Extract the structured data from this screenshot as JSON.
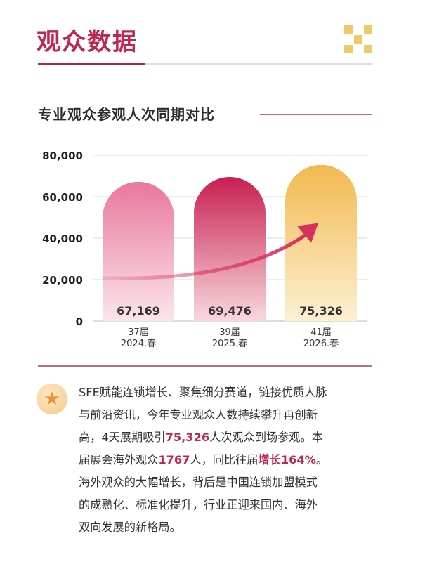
{
  "header": {
    "title": "观众数据"
  },
  "section": {
    "title": "专业观众参观人次同期对比"
  },
  "colors": {
    "accent": "#c0264f",
    "bar1_top": "#e9779d",
    "bar1_bottom": "#fbe6ea",
    "bar2_top": "#c81f52",
    "bar2_bottom": "#f9d9de",
    "bar3_top": "#f2b94f",
    "bar3_bottom": "#fdf0d3",
    "arrow": "#d6305c"
  },
  "chart_data": {
    "type": "bar",
    "categories": [
      "37届 2024.春",
      "39届 2025.春",
      "41届 2026.春"
    ],
    "category_lines": [
      [
        "37届",
        "2024.春"
      ],
      [
        "39届",
        "2025.春"
      ],
      [
        "41届",
        "2026.春"
      ]
    ],
    "values": [
      67169,
      69476,
      75326
    ],
    "value_labels": [
      "67,169",
      "69,476",
      "75,326"
    ],
    "ylim": [
      0,
      80000
    ],
    "yticks": [
      0,
      20000,
      40000,
      60000,
      80000
    ],
    "ytick_labels": [
      "0",
      "20,000",
      "40,000",
      "60,000",
      "80,000"
    ],
    "grid": true,
    "trend_arrow": true
  },
  "body": {
    "line1": "SFE赋能连锁增长、聚焦细分赛道，链接优质人脉",
    "line2": "与前沿资讯，今年专业观众人数持续攀升再创新",
    "line3_a": "高，4天展期吸引",
    "line3_hl": "75,326",
    "line3_b": "人次观众到场参观。本",
    "line4_a": "届展会海外观众",
    "line4_hl1": "1767",
    "line4_b": "人，同比往届",
    "line4_hl2": "增长164%",
    "line4_c": "。",
    "line5": "海外观众的大幅增长，背后是中国连锁加盟模式",
    "line6": "的成熟化、标准化提升，行业正迎来国内、海外",
    "line7": "双向发展的新格局。"
  }
}
